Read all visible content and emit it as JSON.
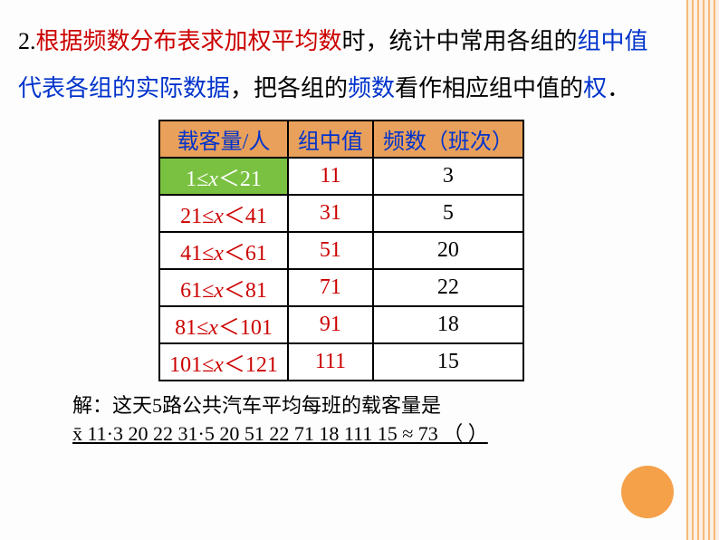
{
  "paragraph": {
    "prefix_num": "2.",
    "span1_red": "根据频数分布表求加权平均数",
    "span2": "时，统计中常用各组的",
    "span3_blue": "组中值代表各组的实际数据",
    "span4": "，把各组的",
    "span5_blue": "频数",
    "span6": "看作相应组中值的",
    "span7_blue": "权",
    "span8": "．"
  },
  "table": {
    "headers": [
      "载客量/人",
      "组中值",
      "频数（班次）"
    ],
    "rows": [
      {
        "range_pre": "1≤",
        "range_post": "＜21",
        "mid": "11",
        "freq": "3",
        "first": true
      },
      {
        "range_pre": "21≤",
        "range_post": "＜41",
        "mid": "31",
        "freq": "5",
        "first": false
      },
      {
        "range_pre": "41≤",
        "range_post": "＜61",
        "mid": "51",
        "freq": "20",
        "first": false
      },
      {
        "range_pre": "61≤",
        "range_post": "＜81",
        "mid": "71",
        "freq": "22",
        "first": false
      },
      {
        "range_pre": "81≤",
        "range_post": "＜101",
        "mid": "91",
        "freq": "18",
        "first": false
      },
      {
        "range_pre": "101≤",
        "range_post": "＜121",
        "mid": "111",
        "freq": "15",
        "first": false
      }
    ]
  },
  "solution": {
    "line1": "解：这天5路公共汽车平均每班的载客量是",
    "line2": "x̄  11·3  20  22  31·5  20  51  22  71  18  111  15  ≈  73 （ ）",
    "underline": true
  },
  "colors": {
    "accent": "#f5a14a",
    "header_bg": "#e8a05a",
    "first_row_bg": "#7ac142",
    "red": "#cc0000",
    "blue": "#0033cc"
  }
}
